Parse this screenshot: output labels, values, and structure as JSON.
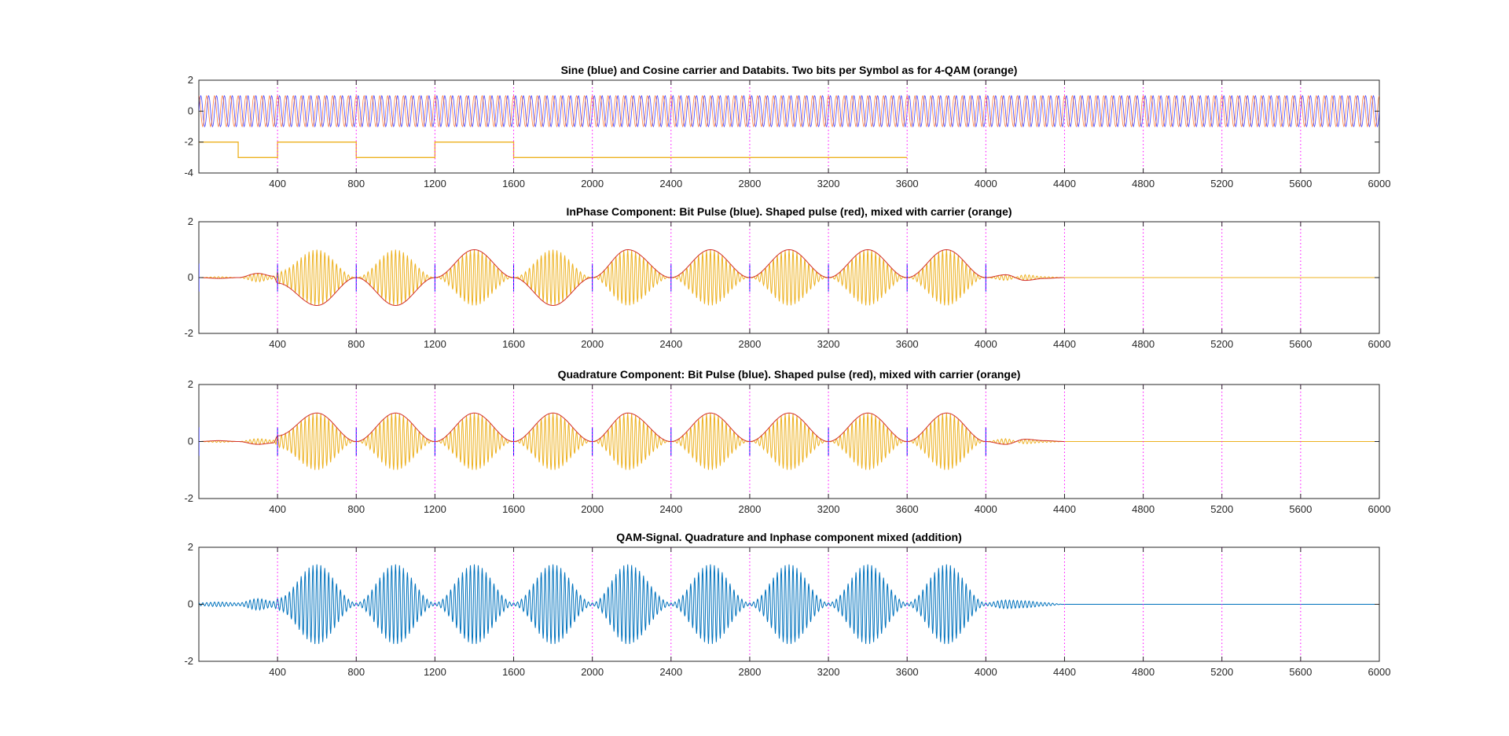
{
  "figure": {
    "background": "#ffffff"
  },
  "colors": {
    "sine": "#0000ff",
    "cosine_carrier": "#ff5500",
    "databits": "#edb120",
    "bit_pulse": "#0000ff",
    "shaped_pulse": "#d2302a",
    "mixed": "#edb120",
    "qam": "#0072bd",
    "marker": "#ff00ff",
    "axes": "#262626"
  },
  "chart_data": [
    {
      "type": "line",
      "title": "Sine (blue) and Cosine carrier and Databits. Two bits per Symbol as for 4-QAM (orange)",
      "xlim": [
        0,
        6000
      ],
      "ylim": [
        -4,
        2
      ],
      "xticks": [
        400,
        800,
        1200,
        1600,
        2000,
        2400,
        2800,
        3200,
        3600,
        4000,
        4400,
        4800,
        5200,
        5600,
        6000
      ],
      "yticks": [
        -4,
        -2,
        0,
        2
      ],
      "symbol_markers": [
        400,
        800,
        1200,
        1600,
        2000,
        2400,
        2800,
        3200,
        3600,
        4000,
        4400,
        4800,
        5200,
        5600
      ],
      "series": [
        {
          "role": "sine_carrier",
          "color_key": "sine",
          "amplitude": 1,
          "period": 40,
          "x_range": [
            0,
            6000
          ]
        },
        {
          "role": "cosine_carrier",
          "color_key": "cosine_carrier",
          "amplitude": 1,
          "period": 40,
          "x_range": [
            0,
            6000
          ]
        },
        {
          "role": "databits",
          "color_key": "databits",
          "step_x": [
            0,
            200,
            400,
            800,
            1200,
            1600,
            3600
          ],
          "step_y": [
            -2,
            -3,
            -2,
            -3,
            -2,
            -3
          ]
        }
      ]
    },
    {
      "type": "line",
      "title": "InPhase Component: Bit Pulse (blue). Shaped pulse (red), mixed with carrier (orange)",
      "xlim": [
        0,
        6000
      ],
      "ylim": [
        -2,
        2
      ],
      "xticks": [
        400,
        800,
        1200,
        1600,
        2000,
        2400,
        2800,
        3200,
        3600,
        4000,
        4400,
        4800,
        5200,
        5600,
        6000
      ],
      "yticks": [
        -2,
        0,
        2
      ],
      "symbol_markers": [
        400,
        800,
        1200,
        1600,
        2000,
        2400,
        2800,
        3200,
        3600,
        4000,
        4400,
        4800,
        5200,
        5600
      ],
      "bit_pulses_at": [
        0,
        400,
        800,
        1200,
        1600,
        2000,
        2400,
        2800,
        3200,
        3600,
        4000
      ],
      "pulse_centers": [
        0,
        400,
        800,
        1200,
        1600,
        2000,
        2400,
        2800,
        3200,
        3600,
        4000
      ],
      "pulse_peaks": [
        1,
        1,
        1,
        1,
        1,
        1,
        1,
        1,
        1,
        1,
        1
      ],
      "envelope_points": [
        [
          0,
          0
        ],
        [
          100,
          -0.03
        ],
        [
          200,
          0.0
        ],
        [
          300,
          0.15
        ],
        [
          380,
          0.05
        ],
        [
          400,
          -0.2
        ],
        [
          600,
          -1.0
        ],
        [
          800,
          0.0
        ],
        [
          1000,
          -1.0
        ],
        [
          1200,
          0.0
        ],
        [
          1400,
          1.0
        ],
        [
          1600,
          0.0
        ],
        [
          1800,
          -1.0
        ],
        [
          2000,
          0.0
        ],
        [
          2180,
          1.0
        ],
        [
          2400,
          0.0
        ],
        [
          2600,
          1.0
        ],
        [
          2800,
          0.0
        ],
        [
          3000,
          1.0
        ],
        [
          3200,
          0.0
        ],
        [
          3400,
          1.0
        ],
        [
          3600,
          0.0
        ],
        [
          3800,
          1.0
        ],
        [
          4000,
          0.0
        ],
        [
          4100,
          0.1
        ],
        [
          4200,
          -0.1
        ],
        [
          4300,
          -0.03
        ],
        [
          4400,
          0.0
        ]
      ],
      "carrier_period": 20
    },
    {
      "type": "line",
      "title": "Quadrature Component: Bit Pulse (blue). Shaped pulse (red), mixed with carrier (orange)",
      "xlim": [
        0,
        6000
      ],
      "ylim": [
        -2,
        2
      ],
      "xticks": [
        400,
        800,
        1200,
        1600,
        2000,
        2400,
        2800,
        3200,
        3600,
        4000,
        4400,
        4800,
        5200,
        5600,
        6000
      ],
      "yticks": [
        -2,
        0,
        2
      ],
      "symbol_markers": [
        400,
        800,
        1200,
        1600,
        2000,
        2400,
        2800,
        3200,
        3600,
        4000,
        4400,
        4800,
        5200,
        5600
      ],
      "bit_pulses_at": [
        0,
        400,
        800,
        1200,
        1600,
        2000,
        2400,
        2800,
        3200,
        3600,
        4000
      ],
      "envelope_points": [
        [
          0,
          0
        ],
        [
          100,
          0.03
        ],
        [
          200,
          0.0
        ],
        [
          300,
          -0.1
        ],
        [
          380,
          -0.05
        ],
        [
          400,
          0.2
        ],
        [
          600,
          1.0
        ],
        [
          800,
          0.0
        ],
        [
          1000,
          1.0
        ],
        [
          1200,
          0.0
        ],
        [
          1400,
          1.0
        ],
        [
          1600,
          0.0
        ],
        [
          1800,
          1.0
        ],
        [
          2000,
          0.0
        ],
        [
          2180,
          1.0
        ],
        [
          2400,
          0.0
        ],
        [
          2600,
          1.0
        ],
        [
          2800,
          0.0
        ],
        [
          3000,
          1.0
        ],
        [
          3200,
          0.0
        ],
        [
          3400,
          1.0
        ],
        [
          3600,
          0.0
        ],
        [
          3800,
          1.0
        ],
        [
          4000,
          0.0
        ],
        [
          4100,
          -0.1
        ],
        [
          4200,
          0.08
        ],
        [
          4300,
          0.03
        ],
        [
          4400,
          0.0
        ]
      ],
      "carrier_period": 20
    },
    {
      "type": "line",
      "title": "QAM-Signal. Quadrature and Inphase component mixed (addition)",
      "xlim": [
        0,
        6000
      ],
      "ylim": [
        -2,
        2
      ],
      "xticks": [
        400,
        800,
        1200,
        1600,
        2000,
        2400,
        2800,
        3200,
        3600,
        4000,
        4400,
        4800,
        5200,
        5600,
        6000
      ],
      "yticks": [
        -2,
        0,
        2
      ],
      "symbol_markers": [
        400,
        800,
        1200,
        1600,
        2000,
        2400,
        2800,
        3200,
        3600,
        4000,
        4400,
        4800,
        5200,
        5600
      ],
      "envelope_points": [
        [
          0,
          0.05
        ],
        [
          100,
          0.08
        ],
        [
          200,
          0.05
        ],
        [
          300,
          0.2
        ],
        [
          380,
          0.1
        ],
        [
          400,
          0.2
        ],
        [
          600,
          1.4
        ],
        [
          800,
          0.05
        ],
        [
          1000,
          1.4
        ],
        [
          1200,
          0.05
        ],
        [
          1400,
          1.4
        ],
        [
          1600,
          0.05
        ],
        [
          1800,
          1.4
        ],
        [
          2000,
          0.05
        ],
        [
          2180,
          1.4
        ],
        [
          2400,
          0.05
        ],
        [
          2600,
          1.4
        ],
        [
          2800,
          0.05
        ],
        [
          3000,
          1.4
        ],
        [
          3200,
          0.05
        ],
        [
          3400,
          1.4
        ],
        [
          3600,
          0.05
        ],
        [
          3800,
          1.4
        ],
        [
          4000,
          0.05
        ],
        [
          4100,
          0.15
        ],
        [
          4200,
          0.12
        ],
        [
          4300,
          0.06
        ],
        [
          4400,
          0.0
        ]
      ],
      "carrier_period": 20
    }
  ]
}
